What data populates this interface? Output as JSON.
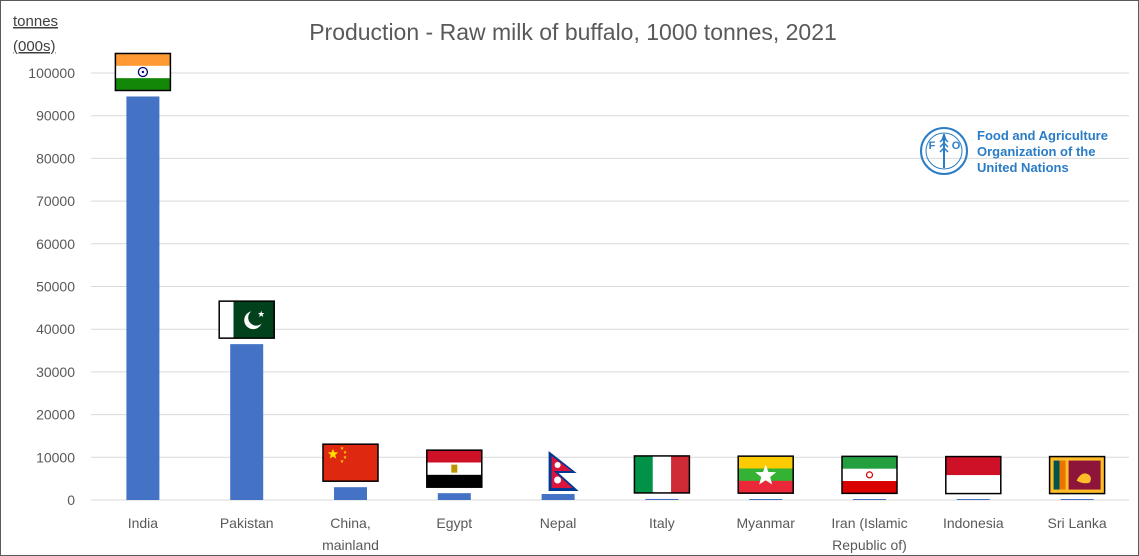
{
  "chart_data": {
    "type": "bar",
    "title": "Production - Raw milk of buffalo, 1000 tonnes, 2021",
    "ylabel_lines": [
      "tonnes",
      "(000s)"
    ],
    "xlabel": "",
    "ylim": [
      0,
      100000
    ],
    "yticks": [
      0,
      10000,
      20000,
      30000,
      40000,
      50000,
      60000,
      70000,
      80000,
      90000,
      100000
    ],
    "grid": true,
    "categories": [
      [
        "India"
      ],
      [
        "Pakistan"
      ],
      [
        "China,",
        "mainland"
      ],
      [
        "Egypt"
      ],
      [
        "Nepal"
      ],
      [
        "Italy"
      ],
      [
        "Myanmar"
      ],
      [
        "Iran (Islamic",
        "Republic of)"
      ],
      [
        "Indonesia"
      ],
      [
        "Sri Lanka"
      ]
    ],
    "values": [
      94500,
      36500,
      3000,
      1600,
      1400,
      250,
      200,
      150,
      100,
      100
    ],
    "bar_color": "#4472c4"
  },
  "logo": {
    "org_lines": [
      "Food and Agriculture",
      "Organization of the",
      "United Nations"
    ],
    "emblem_letters": [
      "F",
      "A",
      "O"
    ],
    "color": "#2a7cc7"
  },
  "flags": [
    "india-flag",
    "pakistan-flag",
    "china-flag",
    "egypt-flag",
    "nepal-flag",
    "italy-flag",
    "myanmar-flag",
    "iran-flag",
    "indonesia-flag",
    "sri-lanka-flag"
  ]
}
